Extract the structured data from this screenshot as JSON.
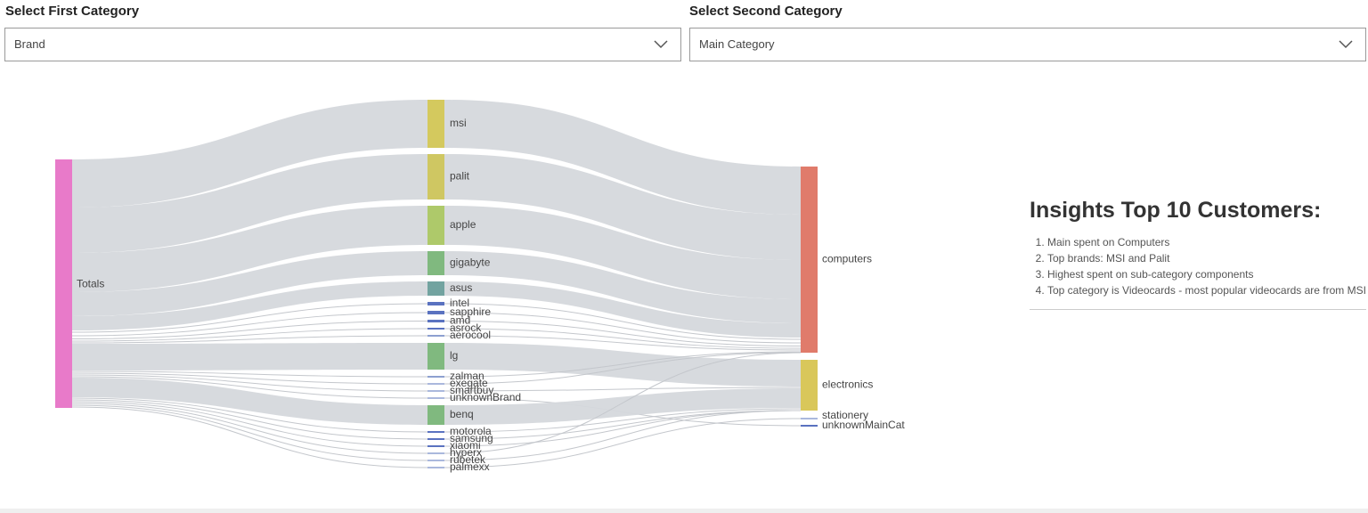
{
  "selectors": {
    "first": {
      "label": "Select First Category",
      "value": "Brand"
    },
    "second": {
      "label": "Select Second Category",
      "value": "Main Category"
    }
  },
  "insights": {
    "title": "Insights Top 10 Customers:",
    "items": [
      "Main spent on Computers",
      "Top brands: MSI and Palit",
      "Highest spent on sub-category components",
      "Top category is Videocards - most popular videocards are from MSI"
    ]
  },
  "chart_data": {
    "type": "sankey",
    "colors": {
      "link": "#d5d8dc",
      "totals": "#e87ac9",
      "computers": "#e07b6b",
      "electronics": "#d9c75a",
      "olive": "#d4c95e",
      "green_light": "#aec96a",
      "green": "#80b97f",
      "teal": "#72a3a0",
      "blue": "#5a72c0"
    },
    "nodes": {
      "source": [
        {
          "name": "Totals",
          "color": "#e87ac9"
        }
      ],
      "middle": [
        {
          "name": "msi",
          "value": 54,
          "color": "#d4c95e"
        },
        {
          "name": "palit",
          "value": 51,
          "color": "#cfc762"
        },
        {
          "name": "apple",
          "value": 44,
          "color": "#aec96a"
        },
        {
          "name": "gigabyte",
          "value": 27,
          "color": "#80b97f"
        },
        {
          "name": "asus",
          "value": 16,
          "color": "#72a3a0"
        },
        {
          "name": "intel",
          "value": 4,
          "color": "#5a72c0"
        },
        {
          "name": "sapphire",
          "value": 4,
          "color": "#5a72c0"
        },
        {
          "name": "amd",
          "value": 3,
          "color": "#5a72c0"
        },
        {
          "name": "asrock",
          "value": 2,
          "color": "#5a72c0"
        },
        {
          "name": "aerocool",
          "value": 1,
          "color": "#8da0d0"
        },
        {
          "name": "lg",
          "value": 30,
          "color": "#80b97f"
        },
        {
          "name": "zalman",
          "value": 1,
          "color": "#8da0d0"
        },
        {
          "name": "exegate",
          "value": 0.5,
          "color": "#aab8dd"
        },
        {
          "name": "smartbuy",
          "value": 0.5,
          "color": "#aab8dd"
        },
        {
          "name": "unknownBrand",
          "value": 0.5,
          "color": "#aab8dd"
        },
        {
          "name": "benq",
          "value": 22,
          "color": "#80b97f"
        },
        {
          "name": "motorola",
          "value": 1,
          "color": "#5a72c0"
        },
        {
          "name": "samsung",
          "value": 1,
          "color": "#5a72c0"
        },
        {
          "name": "xiaomi",
          "value": 1,
          "color": "#5a72c0"
        },
        {
          "name": "hyperx",
          "value": 0.5,
          "color": "#aab8dd"
        },
        {
          "name": "rubetek",
          "value": 0.5,
          "color": "#aab8dd"
        },
        {
          "name": "palmexx",
          "value": 0.5,
          "color": "#aab8dd"
        }
      ],
      "target": [
        {
          "name": "computers",
          "value": 209,
          "color": "#e07b6b"
        },
        {
          "name": "electronics",
          "value": 57,
          "color": "#d9c75a"
        },
        {
          "name": "stationery",
          "value": 0.5,
          "color": "#aab8dd"
        },
        {
          "name": "unknownMainCat",
          "value": 1,
          "color": "#5a72c0"
        }
      ]
    },
    "links": [
      {
        "from": "msi",
        "to": "computers"
      },
      {
        "from": "palit",
        "to": "computers"
      },
      {
        "from": "apple",
        "to": "computers"
      },
      {
        "from": "gigabyte",
        "to": "computers"
      },
      {
        "from": "asus",
        "to": "computers"
      },
      {
        "from": "intel",
        "to": "computers"
      },
      {
        "from": "sapphire",
        "to": "computers"
      },
      {
        "from": "amd",
        "to": "computers"
      },
      {
        "from": "asrock",
        "to": "computers"
      },
      {
        "from": "aerocool",
        "to": "computers"
      },
      {
        "from": "lg",
        "to": "electronics"
      },
      {
        "from": "zalman",
        "to": "computers"
      },
      {
        "from": "exegate",
        "to": "computers"
      },
      {
        "from": "smartbuy",
        "to": "electronics"
      },
      {
        "from": "unknownBrand",
        "to": "unknownMainCat"
      },
      {
        "from": "benq",
        "to": "electronics"
      },
      {
        "from": "motorola",
        "to": "electronics"
      },
      {
        "from": "samsung",
        "to": "electronics"
      },
      {
        "from": "xiaomi",
        "to": "electronics"
      },
      {
        "from": "hyperx",
        "to": "computers"
      },
      {
        "from": "rubetek",
        "to": "electronics"
      },
      {
        "from": "palmexx",
        "to": "stationery"
      }
    ]
  }
}
